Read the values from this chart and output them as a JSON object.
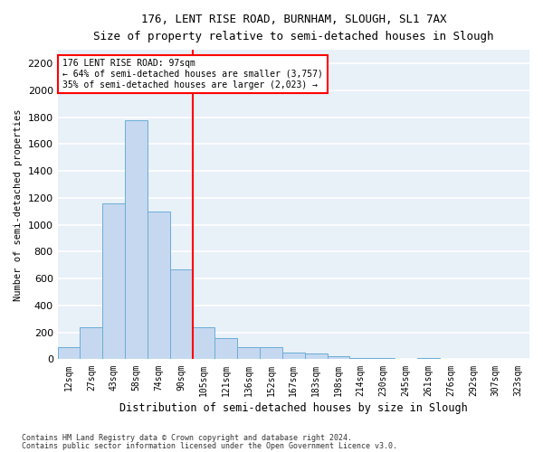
{
  "title1": "176, LENT RISE ROAD, BURNHAM, SLOUGH, SL1 7AX",
  "title2": "Size of property relative to semi-detached houses in Slough",
  "xlabel": "Distribution of semi-detached houses by size in Slough",
  "ylabel": "Number of semi-detached properties",
  "categories": [
    "12sqm",
    "27sqm",
    "43sqm",
    "58sqm",
    "74sqm",
    "90sqm",
    "105sqm",
    "121sqm",
    "136sqm",
    "152sqm",
    "167sqm",
    "183sqm",
    "198sqm",
    "214sqm",
    "230sqm",
    "245sqm",
    "261sqm",
    "276sqm",
    "292sqm",
    "307sqm",
    "323sqm"
  ],
  "values": [
    90,
    240,
    1160,
    1780,
    1100,
    670,
    240,
    160,
    90,
    90,
    50,
    40,
    20,
    10,
    10,
    0,
    10,
    0,
    0,
    0,
    0
  ],
  "bar_color": "#c5d8f0",
  "bar_edge_color": "#6aaed6",
  "annotation_text_line1": "176 LENT RISE ROAD: 97sqm",
  "annotation_text_line2": "← 64% of semi-detached houses are smaller (3,757)",
  "annotation_text_line3": "35% of semi-detached houses are larger (2,023) →",
  "vline_pos": 5.5,
  "ylim": [
    0,
    2300
  ],
  "yticks": [
    0,
    200,
    400,
    600,
    800,
    1000,
    1200,
    1400,
    1600,
    1800,
    2000,
    2200
  ],
  "background_color": "#e8f0f8",
  "grid_color": "#ffffff",
  "footnote1": "Contains HM Land Registry data © Crown copyright and database right 2024.",
  "footnote2": "Contains public sector information licensed under the Open Government Licence v3.0."
}
